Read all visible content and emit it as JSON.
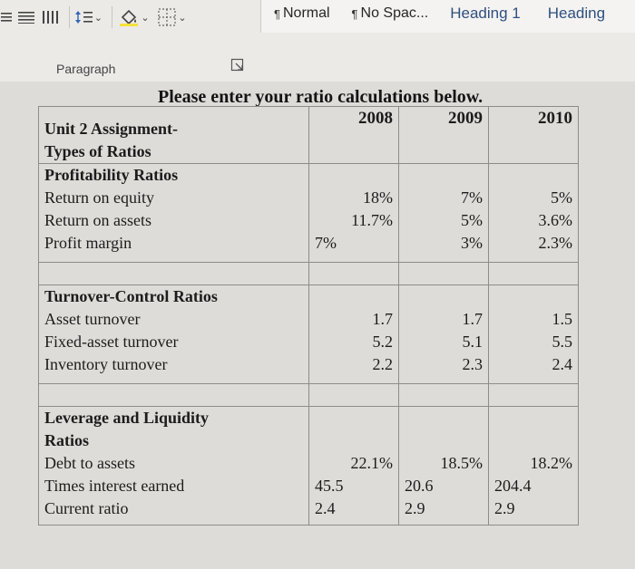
{
  "ribbon": {
    "styles": [
      {
        "label": "Normal"
      },
      {
        "label": "No Spac..."
      },
      {
        "label": "Heading 1"
      },
      {
        "label": "Heading"
      }
    ],
    "group_label": "Paragraph"
  },
  "document": {
    "title": "Please enter your ratio calculations below.",
    "table": {
      "header_label_lines": [
        "Unit 2 Assignment-",
        "Types of Ratios"
      ],
      "years": [
        "2008",
        "2009",
        "2010"
      ],
      "profitability": {
        "title": "Profitability Ratios",
        "labels": [
          "Return on equity",
          "Return on assets",
          "Profit margin"
        ],
        "values": [
          [
            "18%",
            "11.7%",
            "7%"
          ],
          [
            "7%",
            "5%",
            "3%"
          ],
          [
            "5%",
            "3.6%",
            "2.3%"
          ]
        ]
      },
      "turnover": {
        "title": "Turnover-Control Ratios",
        "labels": [
          "Asset turnover",
          "Fixed-asset turnover",
          "Inventory turnover"
        ],
        "values": [
          [
            "1.7",
            "5.2",
            "2.2"
          ],
          [
            "1.7",
            "5.1",
            "2.3"
          ],
          [
            "1.5",
            "5.5",
            "2.4"
          ]
        ]
      },
      "leverage": {
        "title_lines": [
          "Leverage and Liquidity",
          "Ratios"
        ],
        "labels": [
          "Debt to assets",
          "Times interest earned",
          "Current ratio"
        ],
        "values": [
          [
            "22.1%",
            "45.5",
            "2.4"
          ],
          [
            "18.5%",
            "20.6",
            "2.9"
          ],
          [
            "18.2%",
            "204.4",
            "2.9"
          ]
        ]
      }
    }
  }
}
